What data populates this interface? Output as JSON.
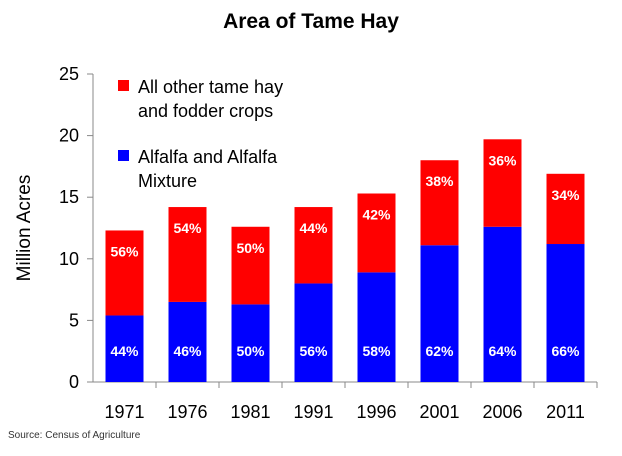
{
  "chart_data": {
    "type": "bar",
    "stacked": true,
    "title": "Area of Tame Hay",
    "ylabel": "Million Acres",
    "xlabel": "",
    "ylim": [
      0,
      25
    ],
    "yticks": [
      0,
      5,
      10,
      15,
      20,
      25
    ],
    "categories": [
      "1971",
      "1976",
      "1981",
      "1991",
      "1996",
      "2001",
      "2006",
      "2011"
    ],
    "series": [
      {
        "name": "Alfalfa and Alfalfa Mixture",
        "color": "#0000ff",
        "values": [
          5.4,
          6.5,
          6.3,
          8.0,
          8.9,
          11.1,
          12.6,
          11.2
        ],
        "labels": [
          "44%",
          "46%",
          "50%",
          "56%",
          "58%",
          "62%",
          "64%",
          "66%"
        ]
      },
      {
        "name": "All other tame hay and fodder crops",
        "color": "#ff0000",
        "values": [
          6.9,
          7.7,
          6.3,
          6.2,
          6.4,
          6.9,
          7.1,
          5.7
        ],
        "labels": [
          "56%",
          "54%",
          "50%",
          "44%",
          "42%",
          "38%",
          "36%",
          "34%"
        ]
      }
    ],
    "legend": {
      "position": "top-left",
      "entries": [
        {
          "line1": "All other tame hay",
          "line2": "and fodder crops",
          "color": "#ff0000"
        },
        {
          "line1": "Alfalfa and Alfalfa",
          "line2": "Mixture",
          "color": "#0000ff"
        }
      ]
    },
    "grid": false,
    "source": "Source: Census of Agriculture"
  }
}
